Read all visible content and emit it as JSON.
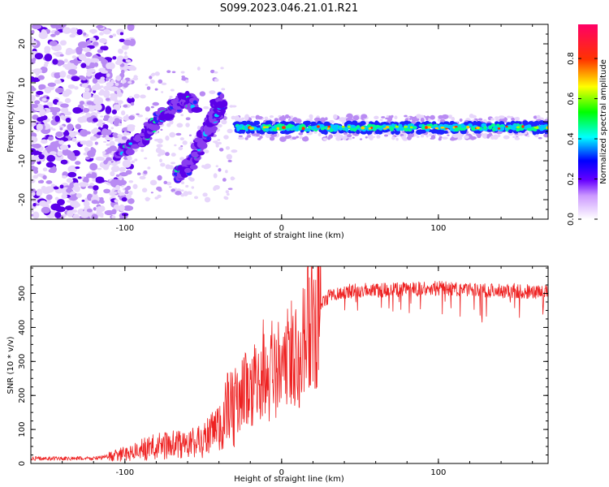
{
  "figure": {
    "title": "S099.2023.046.21.01.R21"
  },
  "chart_data": [
    {
      "type": "heatmap",
      "xlabel": "Height of straight line (km)",
      "ylabel": "Frequency (Hz)",
      "xlim": [
        -160,
        170
      ],
      "ylim": [
        -25,
        25
      ],
      "xticks": [
        -100,
        0,
        100
      ],
      "yticks": [
        -20,
        -10,
        0,
        10,
        20
      ],
      "colorbar": {
        "label": "Normalized spectral amplitude",
        "range": [
          0,
          0.97
        ],
        "ticks": [
          0.0,
          0.2,
          0.4,
          0.6,
          0.8
        ],
        "colormap": [
          "#ffffff",
          "#6600ff",
          "#0000ff",
          "#00ffff",
          "#00ff00",
          "#ffff00",
          "#ff0000",
          "#ff0066"
        ]
      },
      "features": [
        {
          "name": "main-band",
          "x_start": -30,
          "x_end": 170,
          "y": -1.5,
          "thickness": 2.5
        },
        {
          "name": "rising-streak-1",
          "points": [
            [
              -105,
              -8
            ],
            [
              -90,
              -5
            ],
            [
              -80,
              0
            ],
            [
              -70,
              3
            ],
            [
              -62,
              6
            ],
            [
              -55,
              4
            ]
          ]
        },
        {
          "name": "rising-streak-2",
          "points": [
            [
              -68,
              -14
            ],
            [
              -60,
              -12
            ],
            [
              -52,
              -6
            ],
            [
              -45,
              0
            ],
            [
              -40,
              5
            ]
          ]
        },
        {
          "name": "rising-streak-3",
          "points": [
            [
              -48,
              -3
            ],
            [
              -42,
              2
            ],
            [
              -38,
              6
            ]
          ]
        },
        {
          "name": "broadband-noise",
          "x_start": -160,
          "x_end": -115,
          "y_range": [
            -25,
            25
          ]
        }
      ]
    },
    {
      "type": "line",
      "xlabel": "Height of straight line (km)",
      "ylabel": "SNR (10 * v/v)",
      "xlim": [
        -160,
        170
      ],
      "ylim": [
        0,
        580
      ],
      "xticks": [
        -100,
        0,
        100
      ],
      "yticks": [
        0,
        100,
        200,
        300,
        400,
        500
      ],
      "color": "#ee2222",
      "series": [
        {
          "x": [
            -160,
            -140,
            -120,
            -110,
            -100,
            -90,
            -80,
            -70,
            -60,
            -50,
            -40,
            -35,
            -30,
            -25,
            -20,
            -15,
            -10,
            -5,
            0,
            5,
            10,
            15,
            20,
            25,
            30,
            40,
            50,
            60,
            80,
            100,
            120,
            140,
            160,
            170
          ],
          "values": [
            15,
            14,
            15,
            20,
            28,
            40,
            50,
            55,
            55,
            70,
            100,
            150,
            180,
            210,
            230,
            240,
            250,
            265,
            290,
            310,
            340,
            380,
            420,
            460,
            490,
            505,
            510,
            510,
            512,
            515,
            510,
            508,
            505,
            505
          ]
        }
      ]
    }
  ]
}
